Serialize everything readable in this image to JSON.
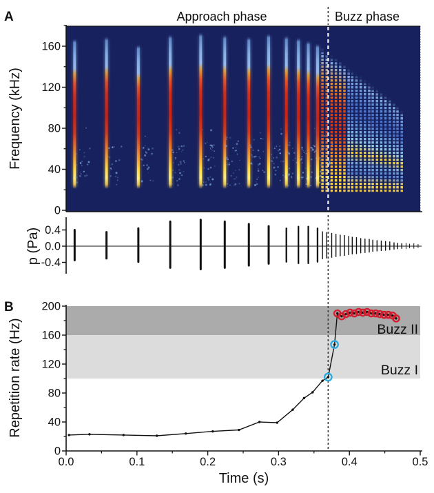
{
  "figure": {
    "panel_a_label": "A",
    "panel_b_label": "B",
    "phase_labels": {
      "approach": "Approach phase",
      "buzz": "Buzz phase"
    },
    "colors": {
      "spectrogram_bg": "#17215e",
      "band_buzz2": "#ababab",
      "band_buzz1": "#dcdcdc",
      "marker_red": "#d21f2f",
      "marker_cyan": "#29abe2",
      "call_red": "#cc2f1d",
      "call_yellow": "#ffd944",
      "call_blue": "#7fa9e0",
      "line_black": "#111111"
    }
  },
  "chart_data": [
    {
      "type": "heatmap",
      "name": "spectrogram",
      "ylabel": "Frequency (kHz)",
      "ylim": [
        0,
        180
      ],
      "yticks": [
        0,
        40,
        80,
        120,
        160
      ],
      "yticks_minor": [
        20,
        60,
        100,
        140,
        180
      ],
      "xlim": [
        0,
        0.5
      ],
      "phase_boundary_s": 0.37,
      "approach_calls": {
        "t": [
          0.012,
          0.057,
          0.102,
          0.147,
          0.19,
          0.224,
          0.258,
          0.286,
          0.311,
          0.328,
          0.342,
          0.355
        ],
        "fmax": [
          168,
          170,
          162,
          172,
          174,
          172,
          170,
          173,
          171,
          169,
          166,
          163
        ],
        "amp": [
          0.38,
          0.33,
          0.42,
          0.58,
          0.62,
          0.58,
          0.52,
          0.47,
          0.42,
          0.46,
          0.46,
          0.42
        ]
      },
      "buzz_calls": {
        "t": [
          0.362,
          0.368,
          0.375,
          0.381,
          0.387,
          0.393,
          0.399,
          0.404,
          0.41,
          0.416,
          0.422,
          0.428,
          0.433,
          0.439,
          0.445,
          0.451,
          0.457,
          0.463,
          0.468,
          0.474
        ],
        "fmax": [
          160,
          156,
          152,
          150,
          147,
          144,
          141,
          138,
          135,
          132,
          129,
          126,
          123,
          120,
          117,
          114,
          111,
          107,
          103,
          98
        ],
        "amp": [
          0.34,
          0.32,
          0.3,
          0.28,
          0.26,
          0.25,
          0.23,
          0.21,
          0.2,
          0.18,
          0.17,
          0.16,
          0.14,
          0.13,
          0.12,
          0.11,
          0.1,
          0.08,
          0.07,
          0.06
        ],
        "warm_count": 6
      }
    },
    {
      "type": "waveform",
      "name": "sound-pressure",
      "ylabel": "p (Pa)",
      "ytick_labels": [
        "0.4",
        "0.0",
        "-0.4"
      ],
      "ytick_values": [
        0.4,
        0.0,
        -0.4
      ],
      "tail_spikes": {
        "t": [
          0.48,
          0.485,
          0.491,
          0.497
        ],
        "amp": [
          0.07,
          0.05,
          0.06,
          0.04
        ]
      }
    },
    {
      "type": "line",
      "name": "repetition-rate",
      "xlabel": "Time (s)",
      "ylabel": "Repetition rate (Hz)",
      "xlim": [
        0,
        0.5
      ],
      "ylim": [
        0,
        200
      ],
      "xtick_labels": [
        "0.0",
        "0.1",
        "0.2",
        "0.3",
        "0.4",
        "0.5"
      ],
      "xticks_minor": [
        0.05,
        0.15,
        0.25,
        0.35,
        0.45
      ],
      "yticks": [
        0,
        40,
        80,
        120,
        160,
        200
      ],
      "yticks_minor": [
        20,
        60,
        100,
        140,
        180
      ],
      "dashed_line_s": 0.37,
      "bands": [
        {
          "label": "Buzz II",
          "range": [
            160,
            200
          ],
          "color": "#ababab"
        },
        {
          "label": "Buzz I",
          "range": [
            100,
            160
          ],
          "color": "#dcdcdc"
        }
      ],
      "series": [
        {
          "name": "approach",
          "marker": "dot",
          "points": [
            [
              0.004,
              22
            ],
            [
              0.033,
              23
            ],
            [
              0.081,
              22
            ],
            [
              0.128,
              21
            ],
            [
              0.169,
              24
            ],
            [
              0.207,
              27
            ],
            [
              0.244,
              29
            ],
            [
              0.273,
              40
            ],
            [
              0.298,
              39
            ],
            [
              0.32,
              57
            ],
            [
              0.336,
              73
            ],
            [
              0.348,
              81
            ],
            [
              0.362,
              97
            ]
          ]
        },
        {
          "name": "buzz-I-onset",
          "marker": "cyan-circle",
          "points": [
            [
              0.37,
              102
            ],
            [
              0.379,
              147
            ]
          ]
        },
        {
          "name": "buzz-II",
          "marker": "red-circle",
          "points": [
            [
              0.383,
              190
            ],
            [
              0.389,
              186
            ],
            [
              0.395,
              189
            ],
            [
              0.401,
              191
            ],
            [
              0.407,
              190
            ],
            [
              0.413,
              192
            ],
            [
              0.419,
              191
            ],
            [
              0.425,
              192
            ],
            [
              0.431,
              190
            ],
            [
              0.437,
              190
            ],
            [
              0.443,
              189
            ],
            [
              0.449,
              188
            ],
            [
              0.455,
              188
            ],
            [
              0.461,
              187
            ],
            [
              0.466,
              183
            ]
          ]
        }
      ]
    }
  ]
}
